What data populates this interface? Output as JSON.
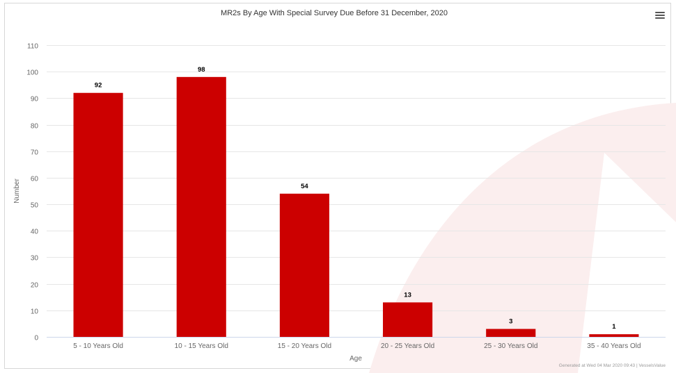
{
  "chart_data": {
    "type": "bar",
    "title": "MR2s By Age With Special Survey Due Before 31 December, 2020",
    "xlabel": "Age",
    "ylabel": "Number",
    "categories": [
      "5 - 10 Years Old",
      "10 - 15 Years Old",
      "15 - 20 Years Old",
      "20 - 25 Years Old",
      "25 - 30 Years Old",
      "35 - 40 Years Old"
    ],
    "values": [
      92,
      98,
      54,
      13,
      3,
      1
    ],
    "ylim": [
      0,
      110
    ],
    "yticks": [
      0,
      10,
      20,
      30,
      40,
      50,
      60,
      70,
      80,
      90,
      100,
      110
    ],
    "grid": true,
    "legend": "none",
    "bar_color": "#cc0000",
    "credits": "Generated at Wed 04 Mar 2020 09:43 | VesselsValue"
  },
  "colors": {
    "bar": "#cc0000",
    "grid": "#e6e6e6",
    "watermark": "#fbeeee"
  },
  "toolbar": {
    "menu_icon": "hamburger-menu-icon"
  }
}
